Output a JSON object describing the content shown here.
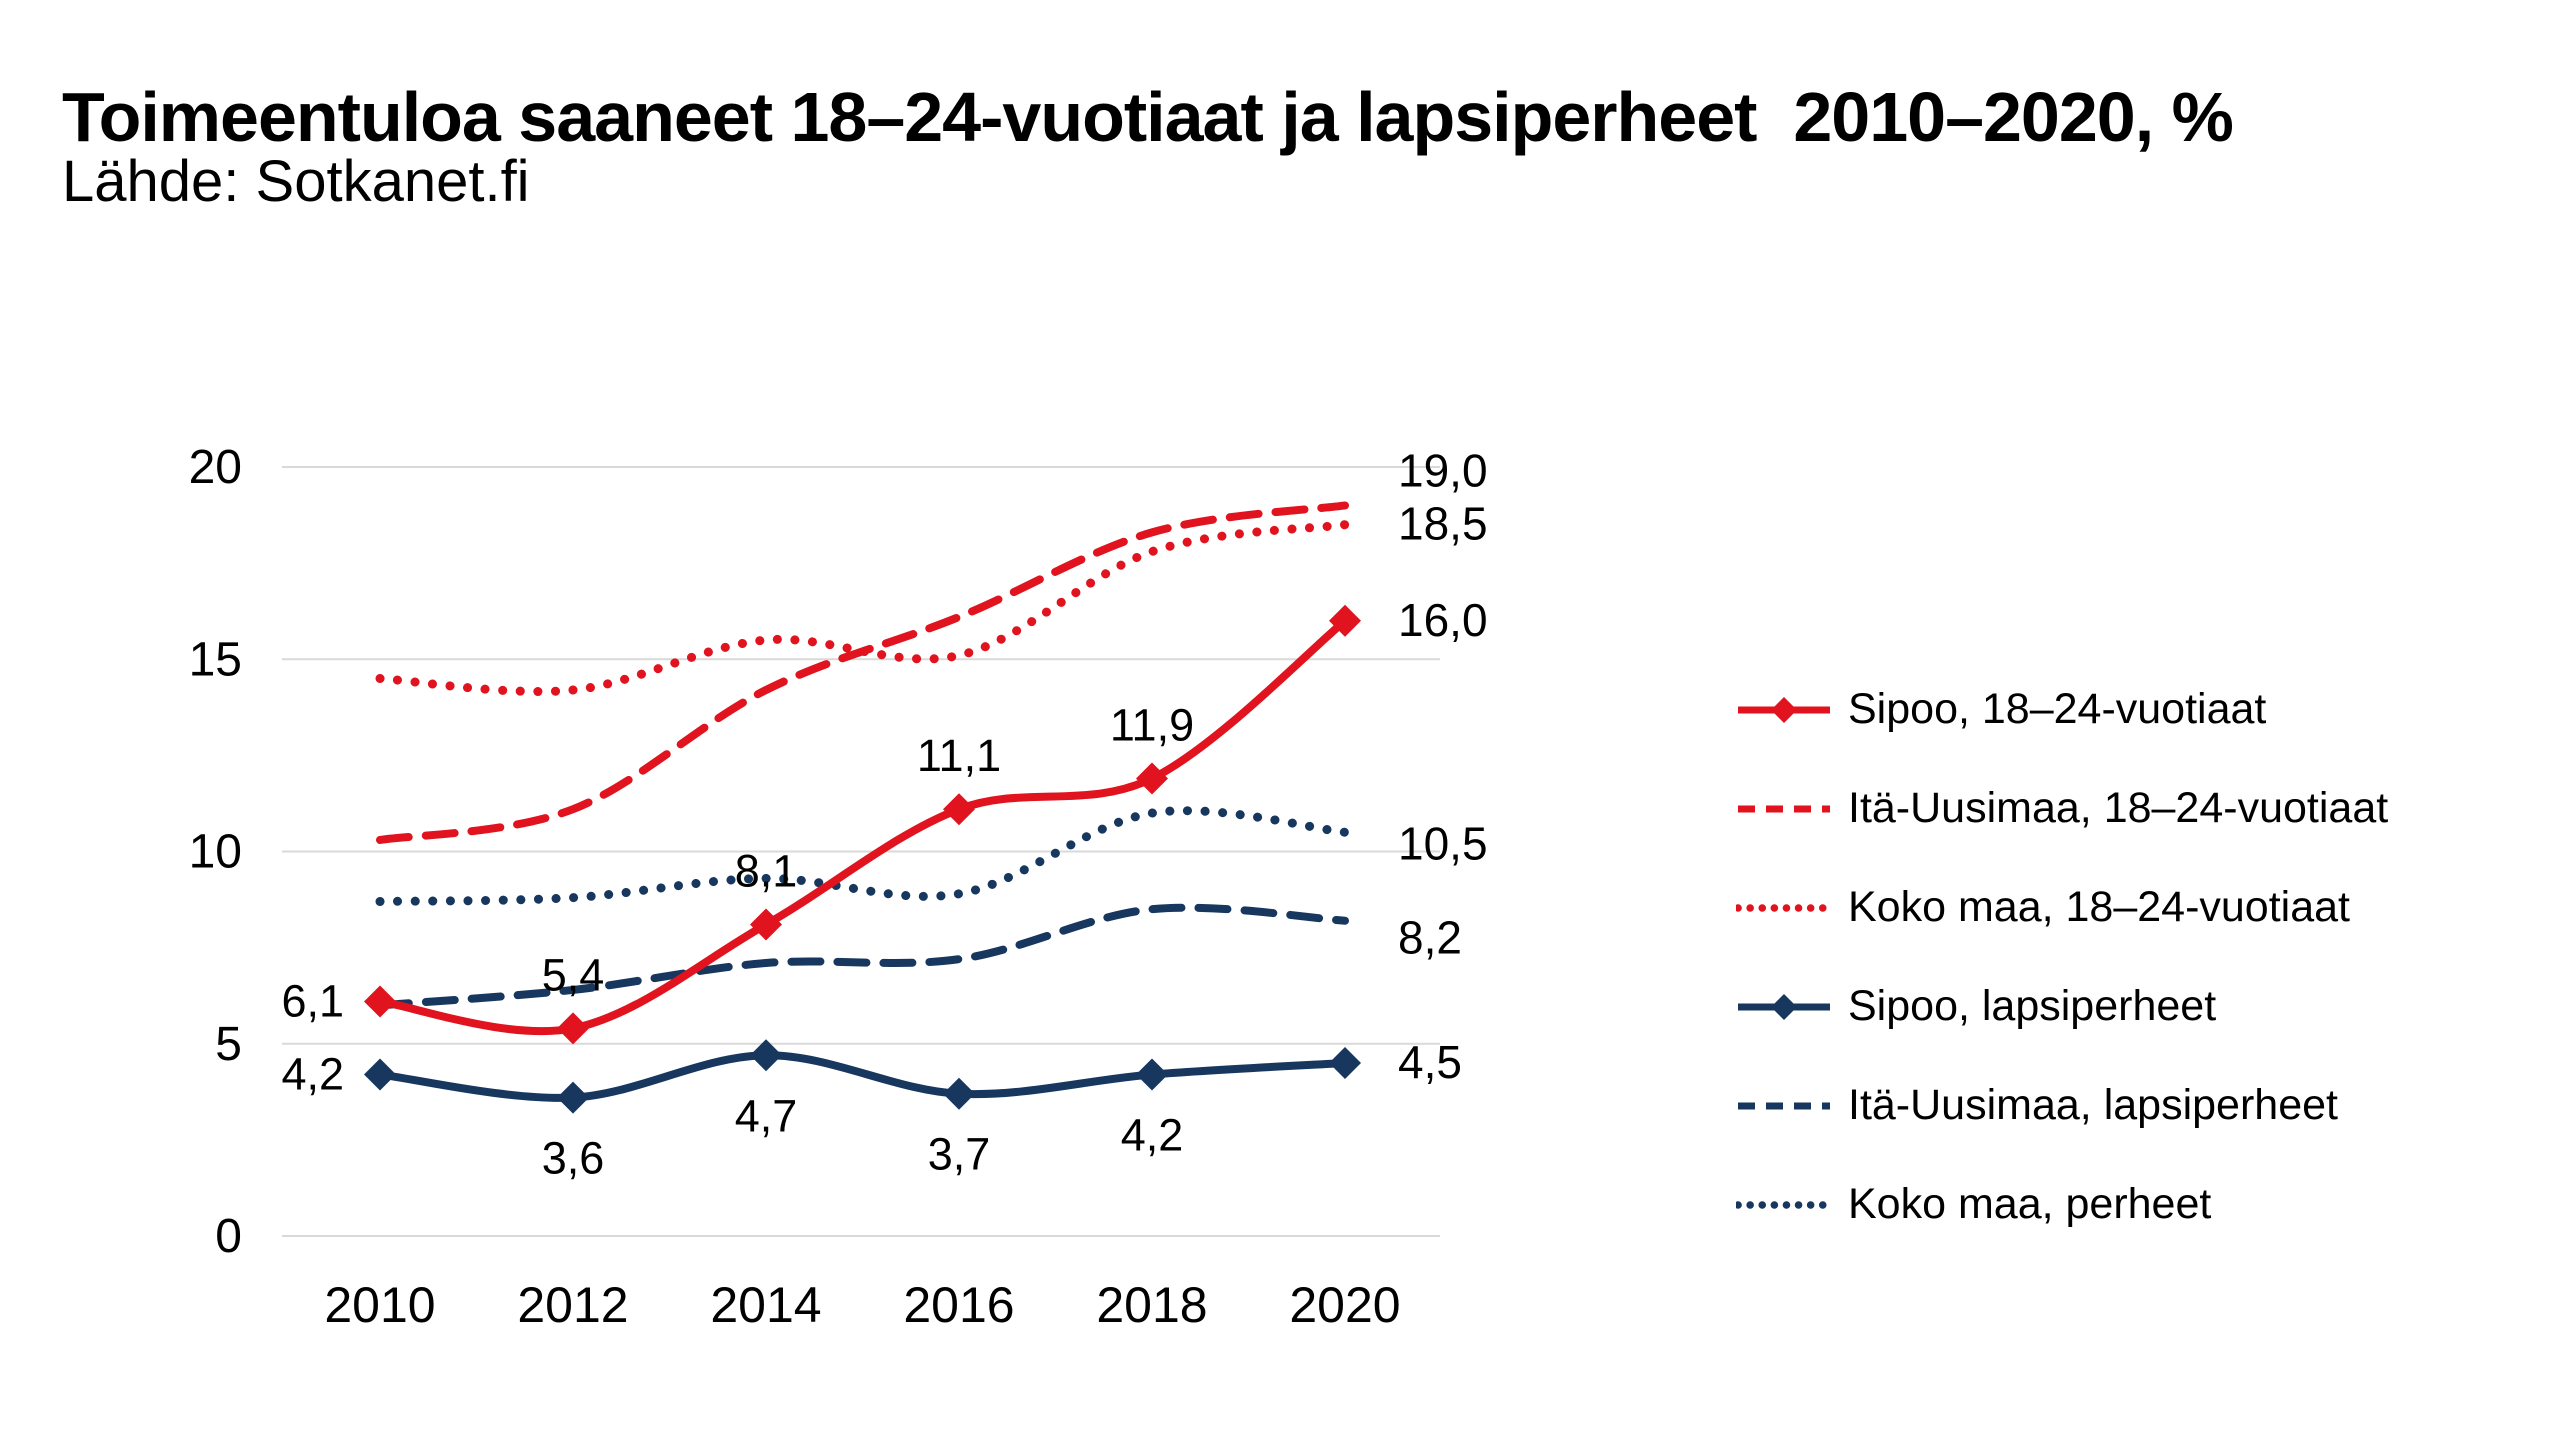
{
  "chart_data": {
    "type": "line",
    "title": "Toimeentuloa saaneet 18–24-vuotiaat ja lapsiperheet  2010–2020, %",
    "subtitle": "Lähde: Sotkanet.fi",
    "categories": [
      2010,
      2012,
      2014,
      2016,
      2018,
      2020
    ],
    "xlabel": "",
    "ylabel": "",
    "ylim": [
      0,
      20
    ],
    "yticks": [
      0,
      5,
      10,
      15,
      20
    ],
    "grid": "horizontal",
    "legend_position": "right",
    "colors": {
      "red": "#e0131e",
      "blue": "#17375e",
      "gridline": "#d9d9d9",
      "text": "#000000"
    },
    "series": [
      {
        "name": "Sipoo, 18–24-vuotiaat",
        "color": "red",
        "style": "solid",
        "marker": "diamond",
        "values": [
          6.1,
          5.4,
          8.1,
          11.1,
          11.9,
          16.0
        ],
        "point_labels": [
          "6,1",
          "5,4",
          "8,1",
          "11,1",
          "11,9",
          null
        ],
        "point_label_pos": [
          "left",
          "above",
          "above",
          "above",
          "above",
          null
        ],
        "end_label": "16,0",
        "end_label_dy": 0
      },
      {
        "name": "Itä-Uusimaa, 18–24-vuotiaat",
        "color": "red",
        "style": "dashed",
        "marker": null,
        "values": [
          10.3,
          11.1,
          14.2,
          16.1,
          18.3,
          19.0
        ],
        "point_labels": [
          null,
          null,
          null,
          null,
          null,
          null
        ],
        "point_label_pos": [
          null,
          null,
          null,
          null,
          null,
          null
        ],
        "end_label": "19,0",
        "end_label_dy": -34
      },
      {
        "name": "Koko maa, 18–24-vuotiaat",
        "color": "red",
        "style": "dotted",
        "marker": null,
        "values": [
          14.5,
          14.2,
          15.5,
          15.1,
          17.8,
          18.5
        ],
        "point_labels": [
          null,
          null,
          null,
          null,
          null,
          null
        ],
        "point_label_pos": [
          null,
          null,
          null,
          null,
          null,
          null
        ],
        "end_label": "18,5",
        "end_label_dy": 0
      },
      {
        "name": "Sipoo, lapsiperheet",
        "color": "blue",
        "style": "solid",
        "marker": "diamond",
        "values": [
          4.2,
          3.6,
          4.7,
          3.7,
          4.2,
          4.5
        ],
        "point_labels": [
          "4,2",
          "3,6",
          "4,7",
          "3,7",
          "4,2",
          null
        ],
        "point_label_pos": [
          "left",
          "below",
          "below",
          "below",
          "below",
          null
        ],
        "end_label": "4,5",
        "end_label_dy": 0
      },
      {
        "name": "Itä-Uusimaa, lapsiperheet",
        "color": "blue",
        "style": "dashed",
        "marker": null,
        "values": [
          6.0,
          6.4,
          7.1,
          7.2,
          8.5,
          8.2
        ],
        "point_labels": [
          null,
          null,
          null,
          null,
          null,
          null
        ],
        "point_label_pos": [
          null,
          null,
          null,
          null,
          null,
          null
        ],
        "end_label": "8,2",
        "end_label_dy": 18
      },
      {
        "name": "Koko maa, perheet",
        "color": "blue",
        "style": "dotted",
        "marker": null,
        "values": [
          8.7,
          8.8,
          9.3,
          8.9,
          11.0,
          10.5
        ],
        "point_labels": [
          null,
          null,
          null,
          null,
          null,
          null
        ],
        "point_label_pos": [
          null,
          null,
          null,
          null,
          null,
          null
        ],
        "end_label": "10,5",
        "end_label_dy": 12
      }
    ]
  }
}
